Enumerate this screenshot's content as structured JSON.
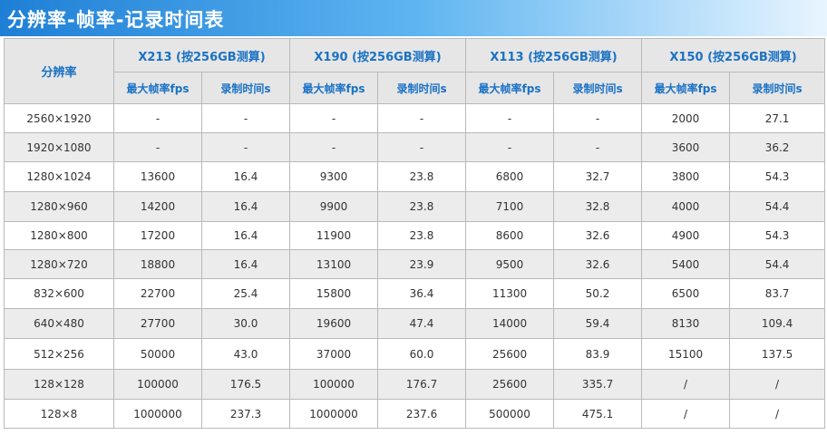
{
  "title": "分辨率-帧率-记录时间表",
  "header": {
    "res_label": "分辨率",
    "models": [
      "X213 (按256GB测算)",
      "X190 (按256GB测算)",
      "X113 (按256GB测算)",
      "X150 (按256GB测算)"
    ],
    "fps_label": "最大帧率fps",
    "time_label": "录制时间s"
  },
  "rows": [
    {
      "res": "2560×1920",
      "v": [
        "-",
        "-",
        "-",
        "-",
        "-",
        "-",
        "2000",
        "27.1"
      ]
    },
    {
      "res": "1920×1080",
      "v": [
        "-",
        "-",
        "-",
        "-",
        "-",
        "-",
        "3600",
        "36.2"
      ]
    },
    {
      "res": "1280×1024",
      "v": [
        "13600",
        "16.4",
        "9300",
        "23.8",
        "6800",
        "32.7",
        "3800",
        "54.3"
      ]
    },
    {
      "res": "1280×960",
      "v": [
        "14200",
        "16.4",
        "9900",
        "23.8",
        "7100",
        "32.8",
        "4000",
        "54.4"
      ]
    },
    {
      "res": "1280×800",
      "v": [
        "17200",
        "16.4",
        "11900",
        "23.8",
        "8600",
        "32.6",
        "4900",
        "54.3"
      ]
    },
    {
      "res": "1280×720",
      "v": [
        "18800",
        "16.4",
        "13100",
        "23.9",
        "9500",
        "32.6",
        "5400",
        "54.4"
      ]
    },
    {
      "res": "832×600",
      "v": [
        "22700",
        "25.4",
        "15800",
        "36.4",
        "11300",
        "50.2",
        "6500",
        "83.7"
      ]
    },
    {
      "res": "640×480",
      "v": [
        "27700",
        "30.0",
        "19600",
        "47.4",
        "14000",
        "59.4",
        "8130",
        "109.4"
      ]
    },
    {
      "res": "512×256",
      "v": [
        "50000",
        "43.0",
        "37000",
        "60.0",
        "25600",
        "83.9",
        "15100",
        "137.5"
      ]
    },
    {
      "res": "128×128",
      "v": [
        "100000",
        "176.5",
        "100000",
        "176.7",
        "25600",
        "335.7",
        "/",
        "/"
      ]
    },
    {
      "res": "128×8",
      "v": [
        "1000000",
        "237.3",
        "1000000",
        "237.6",
        "500000",
        "475.1",
        "/",
        "/"
      ]
    }
  ]
}
